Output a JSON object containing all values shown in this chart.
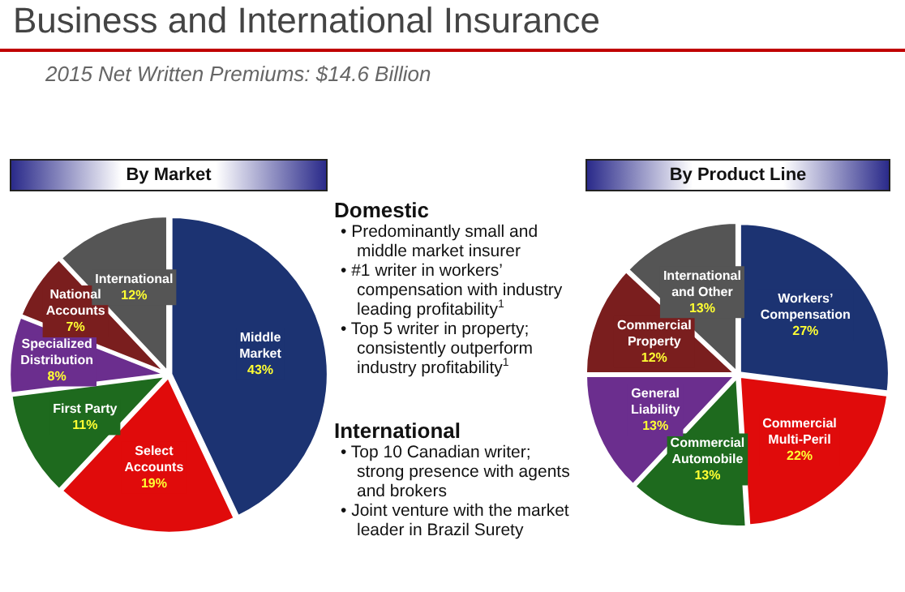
{
  "chart_data": [
    {
      "type": "other",
      "title": "Business and International Insurance",
      "subtitle": "2015 Net Written Premiums: $14.6 Billion"
    },
    {
      "type": "pie",
      "title": "By Market",
      "categories": [
        "Middle Market",
        "Select Accounts",
        "First Party",
        "Specialized Distribution",
        "National Accounts",
        "International"
      ],
      "values": [
        43,
        19,
        11,
        8,
        7,
        12
      ],
      "value_labels": [
        "43%",
        "19%",
        "11%",
        "8%",
        "7%",
        "12%"
      ],
      "colors": [
        "#1c3372",
        "#e00b0b",
        "#1e6a1e",
        "#6b2e8e",
        "#7a1e1e",
        "#555555"
      ],
      "legend": false
    },
    {
      "type": "other",
      "title": "Domestic",
      "annotations": [
        "• Predominantly small and middle market insurer",
        "• #1 writer in workers’ compensation with industry leading profitability$^{1}$",
        "• Top 5 writer in property; consistently outperform industry profitability$^{1}$"
      ]
    },
    {
      "type": "other",
      "title": "International",
      "annotations": [
        "• Top 10 Canadian writer; strong presence with agents and brokers",
        "• Joint venture with the market leader in Brazil Surety"
      ]
    },
    {
      "type": "pie",
      "title": "By Product Line",
      "categories": [
        "Workers’ Compensation",
        "Commercial Multi-Peril",
        "Commercial Automobile",
        "General Liability",
        "Commercial Property",
        "International and Other"
      ],
      "values": [
        27,
        22,
        13,
        13,
        12,
        13
      ],
      "value_labels": [
        "27%",
        "22%",
        "13%",
        "13%",
        "12%",
        "13%"
      ],
      "colors": [
        "#1c3372",
        "#e00b0b",
        "#1e6a1e",
        "#6b2e8e",
        "#7a1e1e",
        "#555555"
      ],
      "legend": false
    }
  ]
}
